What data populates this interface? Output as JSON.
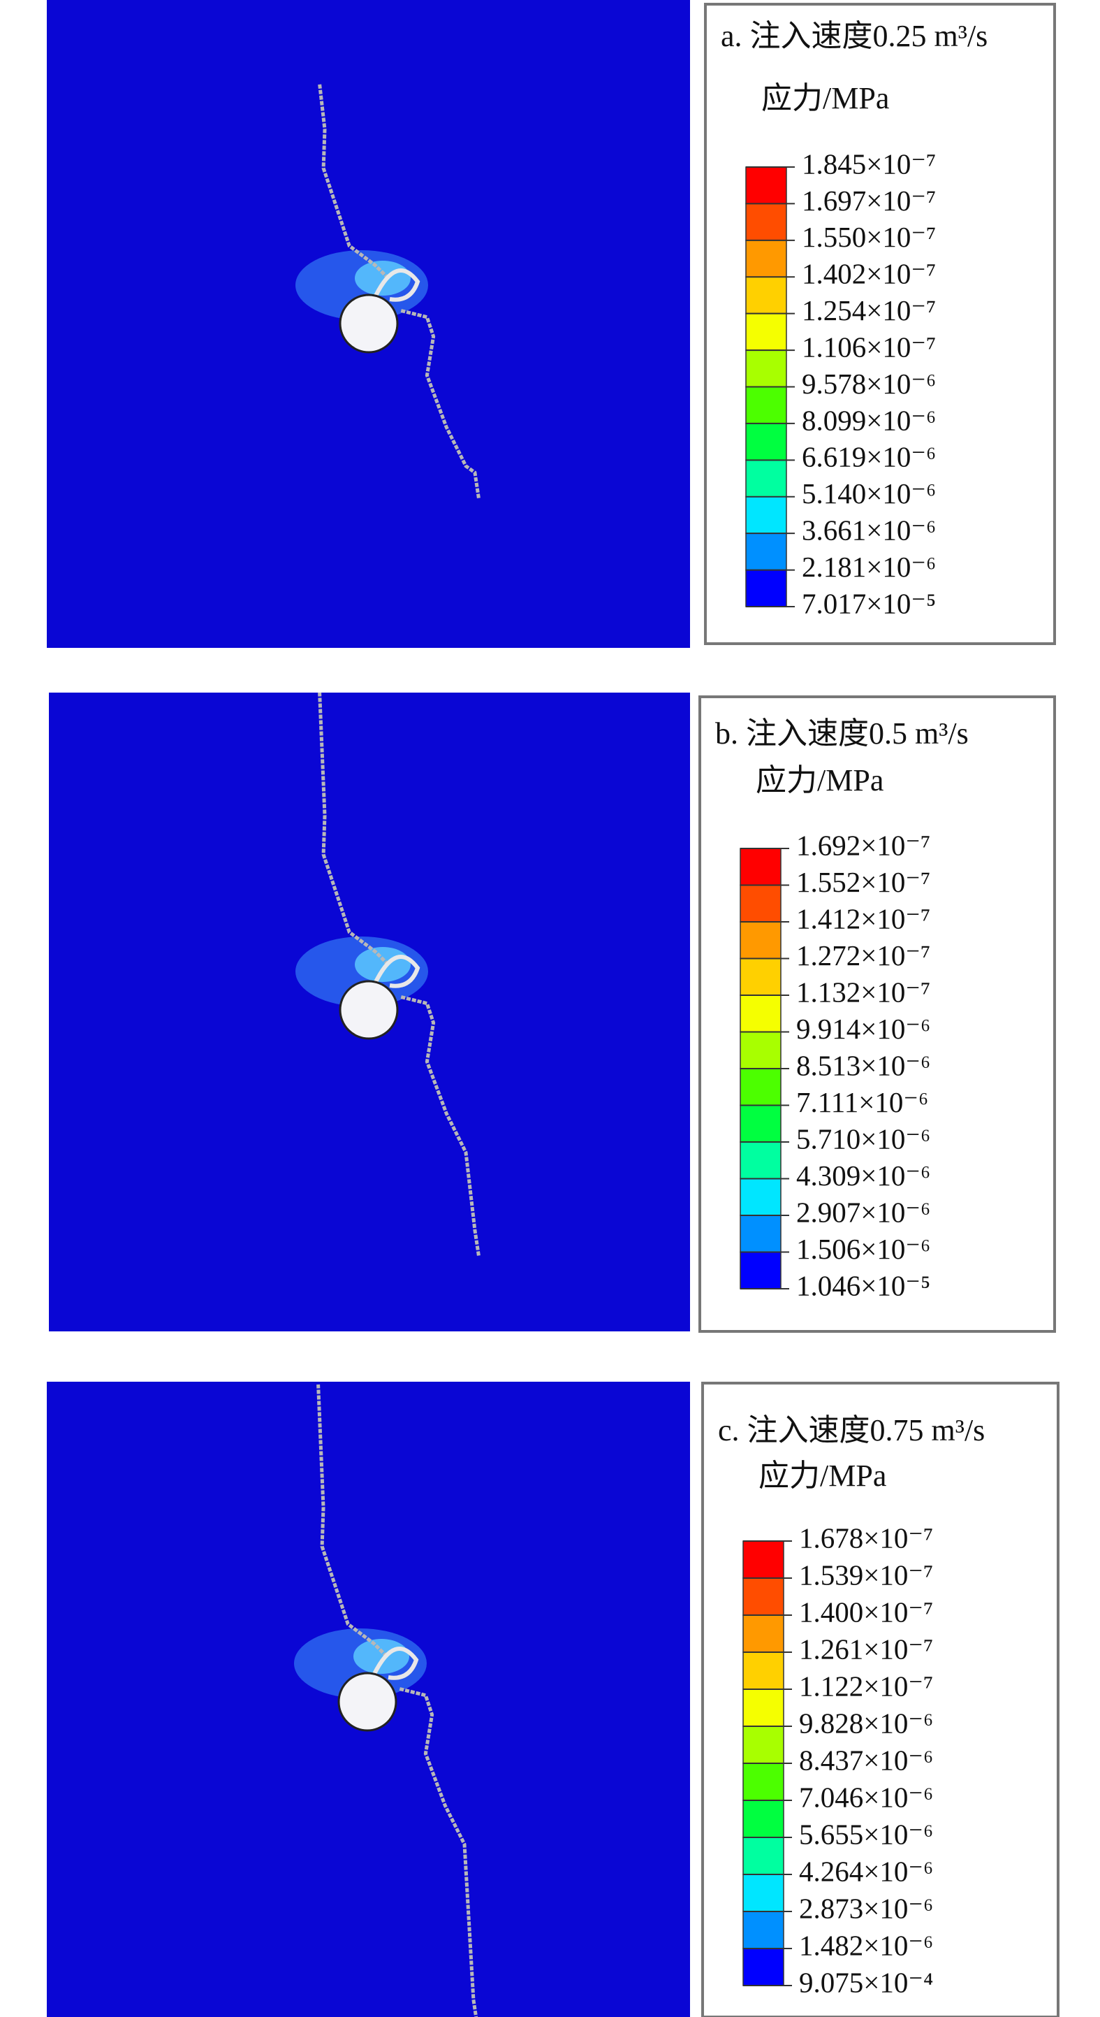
{
  "panels": [
    {
      "title": "a. 注入速度0.25 m³/s",
      "unit": "应力/MPa",
      "legend": [
        "1.845×10⁻⁷",
        "1.697×10⁻⁷",
        "1.550×10⁻⁷",
        "1.402×10⁻⁷",
        "1.254×10⁻⁷",
        "1.106×10⁻⁷",
        "9.578×10⁻⁶",
        "8.099×10⁻⁶",
        "6.619×10⁻⁶",
        "5.140×10⁻⁶",
        "3.661×10⁻⁶",
        "2.181×10⁻⁶",
        "7.017×10⁻⁵"
      ]
    },
    {
      "title": "b. 注入速度0.5 m³/s",
      "unit": "应力/MPa",
      "legend": [
        "1.692×10⁻⁷",
        "1.552×10⁻⁷",
        "1.412×10⁻⁷",
        "1.272×10⁻⁷",
        "1.132×10⁻⁷",
        "9.914×10⁻⁶",
        "8.513×10⁻⁶",
        "7.111×10⁻⁶",
        "5.710×10⁻⁶",
        "4.309×10⁻⁶",
        "2.907×10⁻⁶",
        "1.506×10⁻⁶",
        "1.046×10⁻⁵"
      ]
    },
    {
      "title": "c. 注入速度0.75 m³/s",
      "unit": "应力/MPa",
      "legend": [
        "1.678×10⁻⁷",
        "1.539×10⁻⁷",
        "1.400×10⁻⁷",
        "1.261×10⁻⁷",
        "1.122×10⁻⁷",
        "9.828×10⁻⁶",
        "8.437×10⁻⁶",
        "7.046×10⁻⁶",
        "5.655×10⁻⁶",
        "4.264×10⁻⁶",
        "2.873×10⁻⁶",
        "1.482×10⁻⁶",
        "9.075×10⁻⁴"
      ]
    }
  ]
}
